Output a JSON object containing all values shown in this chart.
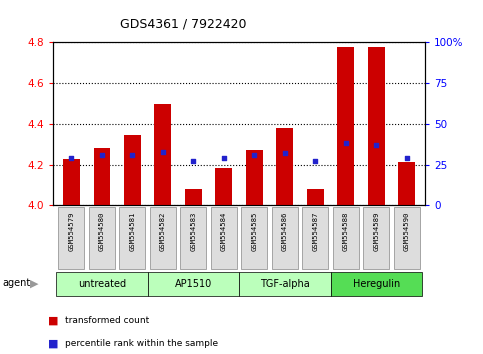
{
  "title": "GDS4361 / 7922420",
  "samples": [
    "GSM554579",
    "GSM554580",
    "GSM554581",
    "GSM554582",
    "GSM554583",
    "GSM554584",
    "GSM554585",
    "GSM554586",
    "GSM554587",
    "GSM554588",
    "GSM554589",
    "GSM554590"
  ],
  "bar_values": [
    4.23,
    4.28,
    4.345,
    4.5,
    4.08,
    4.185,
    4.27,
    4.38,
    4.08,
    4.78,
    4.78,
    4.215
  ],
  "percentile_values": [
    29,
    31,
    31,
    33,
    27,
    29,
    31,
    32,
    27,
    38,
    37,
    29
  ],
  "bar_bottom": 4.0,
  "ylim": [
    4.0,
    4.8
  ],
  "y2lim": [
    0,
    100
  ],
  "yticks": [
    4.0,
    4.2,
    4.4,
    4.6,
    4.8
  ],
  "y2ticks": [
    0,
    25,
    50,
    75,
    100
  ],
  "bar_color": "#cc0000",
  "dot_color": "#2222cc",
  "agent_groups": [
    {
      "label": "untreated",
      "start": 0,
      "end": 2,
      "color": "#bbffbb"
    },
    {
      "label": "AP1510",
      "start": 3,
      "end": 5,
      "color": "#bbffbb"
    },
    {
      "label": "TGF-alpha",
      "start": 6,
      "end": 8,
      "color": "#bbffbb"
    },
    {
      "label": "Heregulin",
      "start": 9,
      "end": 11,
      "color": "#44dd44"
    }
  ],
  "plot_bg": "#ffffff",
  "legend_tc": "transformed count",
  "legend_pr": "percentile rank within the sample"
}
